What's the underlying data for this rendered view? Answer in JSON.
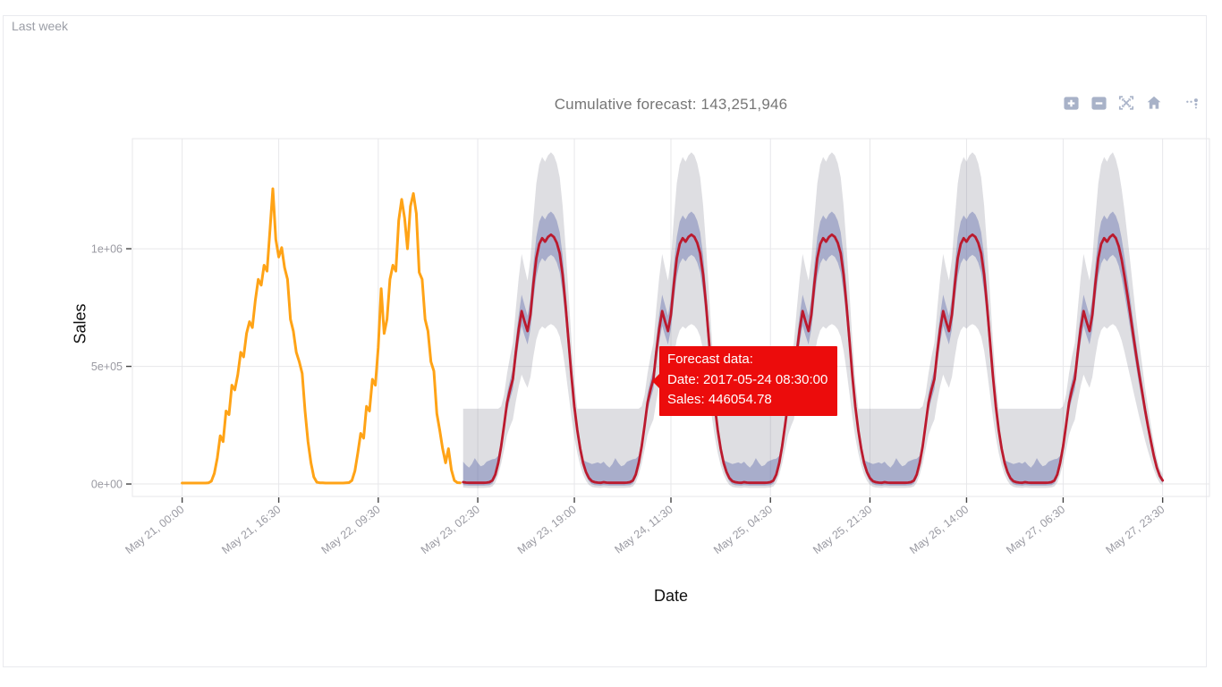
{
  "panel": {
    "label": "Last week"
  },
  "header": {
    "title": "Cumulative forecast: 143,251,946"
  },
  "modebar": {
    "buttons": [
      "zoom-in",
      "zoom-out",
      "autoscale",
      "reset-axes",
      "plotly-logo"
    ],
    "icon_color": "#a8b2c8"
  },
  "tooltip": {
    "title": "Forecast data:",
    "date_line": "Date: 2017-05-24 08:30:00",
    "sales_line": "Sales: 446054.78"
  },
  "chart_data": {
    "type": "line",
    "title": "Cumulative forecast: 143,251,946",
    "xlabel": "Date",
    "ylabel": "Sales",
    "grid": true,
    "legend": "none",
    "time_origin": "2017-05-21 00:00",
    "x_unit": "hours since 2017-05-21 00:00",
    "x_domain_hours": [
      -8.5,
      175.5
    ],
    "y_domain": [
      -53000,
      1468000
    ],
    "x_ticks": [
      {
        "t": 0.0,
        "label": "May 21, 00:00"
      },
      {
        "t": 16.5,
        "label": "May 21, 16:30"
      },
      {
        "t": 33.5,
        "label": "May 22, 09:30"
      },
      {
        "t": 50.5,
        "label": "May 23, 02:30"
      },
      {
        "t": 67.0,
        "label": "May 23, 19:00"
      },
      {
        "t": 83.5,
        "label": "May 24, 11:30"
      },
      {
        "t": 100.5,
        "label": "May 25, 04:30"
      },
      {
        "t": 117.5,
        "label": "May 25, 21:30"
      },
      {
        "t": 134.0,
        "label": "May 26, 14:00"
      },
      {
        "t": 150.5,
        "label": "May 27, 06:30"
      },
      {
        "t": 167.5,
        "label": "May 27, 23:30"
      }
    ],
    "y_ticks": [
      {
        "v": 0,
        "label": "0e+00"
      },
      {
        "v": 500000,
        "label": "5e+05"
      },
      {
        "v": 1000000,
        "label": "1e+06"
      }
    ],
    "colors": {
      "history_line": "#ffa316",
      "forecast_line": "#bb1a2e",
      "inner_band": "rgba(88,100,170,0.40)",
      "outer_band": "rgba(128,128,143,0.26)",
      "gridline": "#e7e7ea",
      "tick_mark": "#444444",
      "tick_label": "#9a9aa2"
    },
    "annotation_point": {
      "t_hours": 80.5,
      "date": "2017-05-24 08:30:00",
      "value": 446054.78
    },
    "series": [
      {
        "name": "history",
        "points": [
          [
            0,
            4000
          ],
          [
            0.5,
            4000
          ],
          [
            1,
            4000
          ],
          [
            1.5,
            4000
          ],
          [
            2,
            4000
          ],
          [
            2.5,
            4000
          ],
          [
            3,
            4000
          ],
          [
            3.5,
            4000
          ],
          [
            4,
            4000
          ],
          [
            4.5,
            5000
          ],
          [
            5,
            12000
          ],
          [
            5.5,
            45000
          ],
          [
            6,
            110000
          ],
          [
            6.5,
            205000
          ],
          [
            7,
            180000
          ],
          [
            7.5,
            310000
          ],
          [
            8,
            295000
          ],
          [
            8.5,
            420000
          ],
          [
            9,
            400000
          ],
          [
            9.5,
            465000
          ],
          [
            10,
            560000
          ],
          [
            10.5,
            540000
          ],
          [
            11,
            640000
          ],
          [
            11.5,
            690000
          ],
          [
            12,
            665000
          ],
          [
            12.5,
            780000
          ],
          [
            13,
            870000
          ],
          [
            13.5,
            845000
          ],
          [
            14,
            930000
          ],
          [
            14.5,
            905000
          ],
          [
            15,
            1080000
          ],
          [
            15.5,
            1255000
          ],
          [
            16,
            1040000
          ],
          [
            16.5,
            965000
          ],
          [
            17,
            1005000
          ],
          [
            17.5,
            920000
          ],
          [
            18,
            870000
          ],
          [
            18.5,
            700000
          ],
          [
            19,
            650000
          ],
          [
            19.5,
            560000
          ],
          [
            20,
            520000
          ],
          [
            20.5,
            470000
          ],
          [
            21,
            310000
          ],
          [
            21.5,
            180000
          ],
          [
            22,
            90000
          ],
          [
            22.5,
            30000
          ],
          [
            23,
            8000
          ],
          [
            23.5,
            5000
          ],
          [
            24,
            5000
          ],
          [
            24.5,
            4000
          ],
          [
            25,
            4000
          ],
          [
            25.5,
            4000
          ],
          [
            26,
            4000
          ],
          [
            26.5,
            4000
          ],
          [
            27,
            4000
          ],
          [
            27.5,
            4000
          ],
          [
            28,
            5000
          ],
          [
            28.5,
            6000
          ],
          [
            29,
            15000
          ],
          [
            29.5,
            55000
          ],
          [
            30,
            130000
          ],
          [
            30.5,
            215000
          ],
          [
            31,
            195000
          ],
          [
            31.5,
            330000
          ],
          [
            32,
            310000
          ],
          [
            32.5,
            445000
          ],
          [
            33,
            420000
          ],
          [
            33.5,
            580000
          ],
          [
            34,
            830000
          ],
          [
            34.5,
            640000
          ],
          [
            35,
            700000
          ],
          [
            35.5,
            870000
          ],
          [
            36,
            930000
          ],
          [
            36.5,
            905000
          ],
          [
            37,
            1120000
          ],
          [
            37.5,
            1210000
          ],
          [
            38,
            1130000
          ],
          [
            38.5,
            1000000
          ],
          [
            39,
            1180000
          ],
          [
            39.5,
            1235000
          ],
          [
            40,
            1150000
          ],
          [
            40.5,
            900000
          ],
          [
            41,
            870000
          ],
          [
            41.5,
            700000
          ],
          [
            42,
            650000
          ],
          [
            42.5,
            520000
          ],
          [
            43,
            480000
          ],
          [
            43.5,
            300000
          ],
          [
            44,
            230000
          ],
          [
            44.5,
            150000
          ],
          [
            45,
            90000
          ],
          [
            45.5,
            150000
          ],
          [
            46,
            60000
          ],
          [
            46.5,
            15000
          ],
          [
            47,
            6000
          ],
          [
            47.5,
            5000
          ]
        ]
      },
      {
        "name": "forecast",
        "day_offsets": [
          48,
          72,
          96,
          120,
          144
        ],
        "row_format": [
          "hour_in_day",
          "yhat",
          "inner_lower",
          "inner_upper",
          "outer_lower",
          "outer_upper"
        ],
        "daily_profile": [
          [
            0,
            8000,
            -5000,
            95000,
            -15000,
            320000
          ],
          [
            0.5,
            6000,
            -6000,
            80000,
            -16000,
            320000
          ],
          [
            1,
            5000,
            -7000,
            70000,
            -17000,
            320000
          ],
          [
            1.5,
            5000,
            -7000,
            85000,
            -17000,
            320000
          ],
          [
            2,
            5000,
            -7000,
            110000,
            -17000,
            320000
          ],
          [
            2.5,
            5000,
            -7000,
            90000,
            -17000,
            320000
          ],
          [
            3,
            5000,
            -7000,
            75000,
            -17000,
            320000
          ],
          [
            3.5,
            5000,
            -7000,
            80000,
            -17000,
            320000
          ],
          [
            4,
            6000,
            -6000,
            95000,
            -16000,
            320000
          ],
          [
            4.5,
            8000,
            -5000,
            100000,
            -15000,
            320000
          ],
          [
            5,
            15000,
            2000,
            105000,
            -10000,
            320000
          ],
          [
            5.5,
            40000,
            25000,
            108000,
            6000,
            320000
          ],
          [
            6,
            90000,
            72000,
            120000,
            39000,
            320000
          ],
          [
            6.5,
            160000,
            137000,
            190000,
            86000,
            330000
          ],
          [
            7,
            250000,
            221000,
            280000,
            145000,
            380000
          ],
          [
            7.5,
            345000,
            309000,
            385000,
            208000,
            470000
          ],
          [
            8,
            400000,
            360000,
            440000,
            244000,
            540000
          ],
          [
            8.5,
            446055,
            403000,
            490000,
            274000,
            600000
          ],
          [
            9,
            560000,
            509000,
            615000,
            350000,
            745000
          ],
          [
            9.5,
            660000,
            602000,
            722000,
            416000,
            878000
          ],
          [
            10,
            735000,
            672000,
            805000,
            465000,
            978000
          ],
          [
            10.5,
            690000,
            630000,
            760000,
            435000,
            918000
          ],
          [
            11,
            650000,
            593000,
            715000,
            409000,
            865000
          ],
          [
            11.5,
            720000,
            658000,
            790000,
            455000,
            958000
          ],
          [
            12,
            850000,
            779000,
            930000,
            541000,
            1131000
          ],
          [
            12.5,
            960000,
            881000,
            1050000,
            614000,
            1277000
          ],
          [
            13,
            1020000,
            937000,
            1115000,
            653000,
            1357000
          ],
          [
            13.5,
            1045000,
            960000,
            1142000,
            670000,
            1390000
          ],
          [
            14,
            1030000,
            946000,
            1125000,
            660000,
            1370000
          ],
          [
            14.5,
            1050000,
            965000,
            1148000,
            673000,
            1397000
          ],
          [
            15,
            1060000,
            974000,
            1158000,
            680000,
            1410000
          ],
          [
            15.5,
            1050000,
            965000,
            1146000,
            673000,
            1397000
          ],
          [
            16,
            1025000,
            941000,
            1119000,
            657000,
            1363000
          ],
          [
            16.5,
            980000,
            899000,
            1070000,
            627000,
            1303000
          ],
          [
            17,
            890000,
            816000,
            972000,
            567000,
            1184000
          ],
          [
            17.5,
            760000,
            695000,
            830000,
            482000,
            1011000
          ],
          [
            18,
            610000,
            555000,
            668000,
            383000,
            811000
          ],
          [
            18.5,
            460000,
            416000,
            504000,
            284000,
            612000
          ],
          [
            19,
            330000,
            295000,
            362000,
            198000,
            439000
          ],
          [
            19.5,
            230000,
            202000,
            253000,
            132000,
            320000
          ],
          [
            20,
            150000,
            128000,
            166000,
            79000,
            320000
          ],
          [
            20.5,
            90000,
            72000,
            102000,
            39000,
            320000
          ],
          [
            21,
            50000,
            35000,
            95000,
            13000,
            320000
          ],
          [
            21.5,
            25000,
            11000,
            90000,
            -4000,
            320000
          ],
          [
            22,
            12000,
            -1000,
            85000,
            -12000,
            320000
          ],
          [
            22.5,
            8000,
            -5000,
            88000,
            -15000,
            320000
          ],
          [
            23,
            6000,
            -6000,
            92000,
            -16000,
            320000
          ],
          [
            23.5,
            5000,
            -7000,
            86000,
            -17000,
            320000
          ]
        ],
        "last_day_tail": [
          [
            15,
            1060000,
            974000,
            1158000,
            680000,
            1410000
          ],
          [
            15.5,
            1045000,
            960000,
            1140000,
            670000,
            1380000
          ],
          [
            16,
            1010000,
            927000,
            1105000,
            645000,
            1330000
          ],
          [
            16.5,
            955000,
            876000,
            1045000,
            610000,
            1255000
          ],
          [
            17,
            880000,
            806000,
            963000,
            560000,
            1160000
          ],
          [
            17.5,
            800000,
            732000,
            875000,
            505000,
            1050000
          ],
          [
            18,
            715000,
            653000,
            782000,
            450000,
            935000
          ],
          [
            18.5,
            630000,
            574000,
            690000,
            395000,
            820000
          ],
          [
            19,
            545000,
            495000,
            597000,
            340000,
            705000
          ],
          [
            19.5,
            465000,
            420000,
            510000,
            285000,
            600000
          ],
          [
            20,
            390000,
            350000,
            428000,
            235000,
            505000
          ],
          [
            20.5,
            315000,
            281000,
            347000,
            185000,
            410000
          ],
          [
            21,
            245000,
            216000,
            271000,
            140000,
            325000
          ],
          [
            21.5,
            180000,
            156000,
            201000,
            98000,
            248000
          ],
          [
            22,
            120000,
            100000,
            136000,
            60000,
            175000
          ],
          [
            22.5,
            70000,
            54000,
            82000,
            28000,
            112000
          ],
          [
            23,
            35000,
            22000,
            45000,
            5000,
            65000
          ],
          [
            23.5,
            15000,
            5000,
            25000,
            -5000,
            40000
          ]
        ]
      }
    ]
  }
}
